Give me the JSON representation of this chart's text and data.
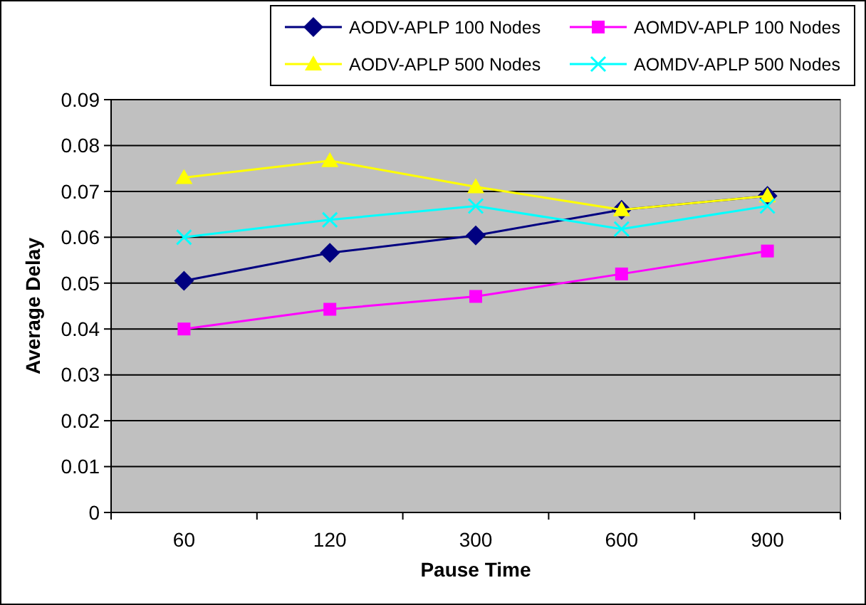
{
  "chart_data": {
    "type": "line",
    "xlabel": "Pause Time",
    "ylabel": "Average Delay",
    "categories": [
      "60",
      "120",
      "300",
      "600",
      "900"
    ],
    "ylim": [
      0,
      0.09
    ],
    "yticks": [
      0,
      0.01,
      0.02,
      0.03,
      0.04,
      0.05,
      0.06,
      0.07,
      0.08,
      0.09
    ],
    "grid": "y",
    "legend": "top",
    "series": [
      {
        "name": "AODV-APLP 100 Nodes",
        "color": "#000080",
        "marker": "diamond",
        "values": [
          0.0505,
          0.0566,
          0.0604,
          0.066,
          0.069
        ]
      },
      {
        "name": "AOMDV-APLP 100 Nodes",
        "color": "#ff00ff",
        "marker": "square",
        "values": [
          0.04,
          0.0443,
          0.0471,
          0.052,
          0.057
        ]
      },
      {
        "name": "AODV-APLP 500 Nodes",
        "color": "#ffff00",
        "marker": "triangle",
        "values": [
          0.073,
          0.0767,
          0.071,
          0.066,
          0.069
        ]
      },
      {
        "name": "AOMDV-APLP 500 Nodes",
        "color": "#00ffff",
        "marker": "cross",
        "values": [
          0.06,
          0.0638,
          0.0668,
          0.0618,
          0.0668
        ]
      }
    ]
  }
}
